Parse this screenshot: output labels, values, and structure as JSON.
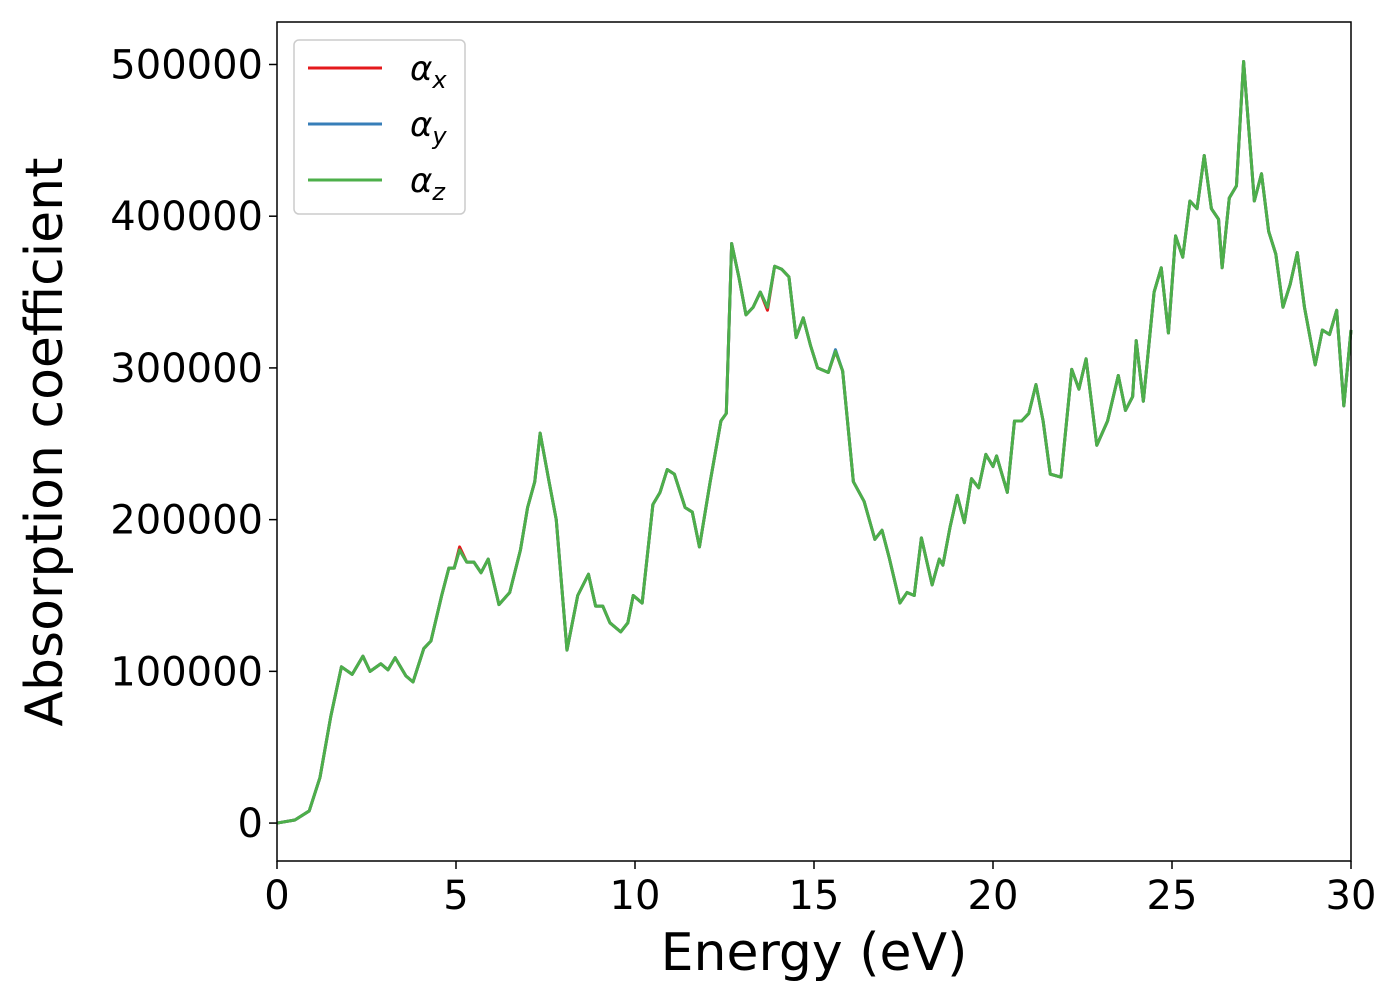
{
  "chart_data": {
    "type": "line",
    "xlabel": "Energy (eV)",
    "ylabel": "Absorption coefficient",
    "xlim": [
      0,
      30
    ],
    "xticks": [
      0,
      5,
      10,
      15,
      20,
      25,
      30
    ],
    "ylim": [
      -25000,
      528000
    ],
    "yticks": [
      0,
      100000,
      200000,
      300000,
      400000,
      500000
    ],
    "grid": false,
    "legend": "upper left",
    "x": [
      0,
      0.5,
      0.9,
      1.2,
      1.5,
      1.8,
      2.1,
      2.4,
      2.6,
      2.9,
      3.1,
      3.3,
      3.6,
      3.8,
      4.1,
      4.3,
      4.6,
      4.8,
      4.95,
      5.1,
      5.3,
      5.5,
      5.7,
      5.9,
      6.2,
      6.5,
      6.8,
      7.0,
      7.2,
      7.35,
      7.6,
      7.8,
      8.1,
      8.4,
      8.7,
      8.9,
      9.1,
      9.3,
      9.6,
      9.8,
      9.95,
      10.2,
      10.5,
      10.7,
      10.9,
      11.1,
      11.4,
      11.6,
      11.8,
      12.1,
      12.4,
      12.55,
      12.7,
      12.9,
      13.1,
      13.3,
      13.5,
      13.7,
      13.9,
      14.1,
      14.3,
      14.5,
      14.7,
      14.9,
      15.1,
      15.4,
      15.6,
      15.8,
      16.1,
      16.4,
      16.7,
      16.9,
      17.1,
      17.4,
      17.6,
      17.8,
      18.0,
      18.3,
      18.5,
      18.6,
      18.8,
      19.0,
      19.2,
      19.4,
      19.6,
      19.8,
      20.0,
      20.1,
      20.4,
      20.6,
      20.8,
      21.0,
      21.2,
      21.4,
      21.6,
      21.9,
      22.2,
      22.4,
      22.6,
      22.9,
      23.2,
      23.5,
      23.7,
      23.9,
      24.0,
      24.2,
      24.5,
      24.7,
      24.9,
      25.1,
      25.3,
      25.5,
      25.7,
      25.9,
      26.1,
      26.3,
      26.4,
      26.6,
      26.8,
      27.0,
      27.3,
      27.5,
      27.7,
      27.9,
      28.1,
      28.3,
      28.5,
      28.7,
      29.0,
      29.2,
      29.4,
      29.6,
      29.8,
      30.0
    ],
    "series": [
      {
        "name": "αx",
        "color": "#e41a1c",
        "values": [
          0,
          2000,
          8000,
          30000,
          70000,
          103000,
          98000,
          110000,
          100000,
          105000,
          101000,
          109000,
          97000,
          93000,
          115000,
          120000,
          150000,
          168000,
          168000,
          182000,
          172000,
          172000,
          165000,
          174000,
          144000,
          152000,
          180000,
          208000,
          225000,
          257000,
          225000,
          200000,
          114000,
          150000,
          164000,
          143000,
          143000,
          132000,
          126000,
          132000,
          150000,
          145000,
          210000,
          218000,
          233000,
          230000,
          208000,
          205000,
          182000,
          225000,
          265000,
          270000,
          382000,
          360000,
          335000,
          340000,
          350000,
          338000,
          367000,
          365000,
          360000,
          320000,
          333000,
          315000,
          300000,
          297000,
          311000,
          298000,
          225000,
          212000,
          187000,
          193000,
          175000,
          145000,
          152000,
          150000,
          188000,
          157000,
          174000,
          170000,
          195000,
          216000,
          198000,
          227000,
          221000,
          243000,
          235000,
          242000,
          218000,
          265000,
          265000,
          270000,
          289000,
          265000,
          230000,
          228000,
          299000,
          286000,
          306000,
          249000,
          265000,
          295000,
          272000,
          281000,
          318000,
          278000,
          350000,
          366000,
          323000,
          387000,
          373000,
          410000,
          405000,
          440000,
          405000,
          398000,
          366000,
          412000,
          420000,
          502000,
          410000,
          428000,
          390000,
          375000,
          340000,
          355000,
          376000,
          340000,
          302000,
          325000,
          322000,
          338000,
          275000,
          325000
        ]
      },
      {
        "name": "αy",
        "color": "#377eb8",
        "values": [
          0,
          2000,
          8000,
          30000,
          70000,
          103000,
          98000,
          110000,
          100000,
          105000,
          101000,
          109000,
          97000,
          93000,
          115000,
          120000,
          150000,
          168000,
          168000,
          180000,
          172000,
          172000,
          165000,
          174000,
          144000,
          152000,
          180000,
          208000,
          225000,
          257000,
          225000,
          200000,
          114000,
          150000,
          164000,
          143000,
          143000,
          132000,
          126000,
          132000,
          150000,
          145000,
          210000,
          218000,
          233000,
          230000,
          208000,
          205000,
          182000,
          225000,
          265000,
          270000,
          382000,
          360000,
          335000,
          340000,
          350000,
          340000,
          367000,
          365000,
          360000,
          320000,
          333000,
          315000,
          300000,
          297000,
          312000,
          298000,
          225000,
          212000,
          187000,
          193000,
          175000,
          145000,
          152000,
          150000,
          188000,
          157000,
          174000,
          170000,
          195000,
          216000,
          198000,
          227000,
          221000,
          243000,
          235000,
          242000,
          218000,
          265000,
          265000,
          270000,
          289000,
          265000,
          230000,
          228000,
          299000,
          286000,
          306000,
          249000,
          265000,
          295000,
          272000,
          281000,
          318000,
          278000,
          350000,
          366000,
          323000,
          387000,
          373000,
          410000,
          405000,
          440000,
          405000,
          398000,
          366000,
          412000,
          420000,
          502000,
          410000,
          428000,
          390000,
          375000,
          340000,
          355000,
          376000,
          340000,
          302000,
          325000,
          322000,
          338000,
          275000,
          325000
        ]
      },
      {
        "name": "αz",
        "color": "#4daf4a",
        "values": [
          0,
          2000,
          8000,
          30000,
          70000,
          103000,
          98000,
          110000,
          100000,
          105000,
          101000,
          109000,
          97000,
          93000,
          115000,
          120000,
          150000,
          168000,
          168000,
          180000,
          172000,
          172000,
          165000,
          174000,
          144000,
          152000,
          180000,
          208000,
          225000,
          257000,
          225000,
          200000,
          114000,
          150000,
          164000,
          143000,
          143000,
          132000,
          126000,
          132000,
          150000,
          145000,
          210000,
          218000,
          233000,
          230000,
          208000,
          205000,
          182000,
          225000,
          265000,
          270000,
          382000,
          360000,
          335000,
          340000,
          350000,
          340000,
          367000,
          365000,
          360000,
          320000,
          333000,
          315000,
          300000,
          297000,
          311000,
          298000,
          225000,
          212000,
          187000,
          193000,
          175000,
          145000,
          152000,
          150000,
          188000,
          157000,
          174000,
          170000,
          195000,
          216000,
          198000,
          227000,
          221000,
          243000,
          235000,
          242000,
          218000,
          265000,
          265000,
          270000,
          289000,
          265000,
          230000,
          228000,
          299000,
          286000,
          306000,
          249000,
          265000,
          295000,
          272000,
          281000,
          318000,
          278000,
          350000,
          366000,
          323000,
          387000,
          373000,
          410000,
          405000,
          440000,
          405000,
          398000,
          366000,
          412000,
          420000,
          502000,
          410000,
          428000,
          390000,
          375000,
          340000,
          355000,
          376000,
          340000,
          302000,
          325000,
          322000,
          338000,
          275000,
          325000
        ]
      }
    ]
  }
}
